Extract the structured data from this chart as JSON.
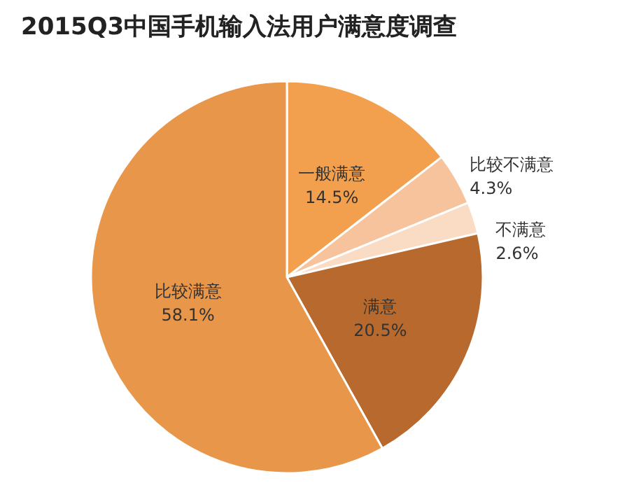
{
  "chart_data": {
    "type": "pie",
    "title": "2015Q3中国手机输入法用户满意度调查",
    "categories": [
      "一般满意",
      "比较不满意",
      "不满意",
      "满意",
      "比较满意"
    ],
    "values": [
      14.5,
      4.3,
      2.6,
      20.5,
      58.1
    ],
    "value_labels": [
      "14.5%",
      "4.3%",
      "2.6%",
      "20.5%",
      "58.1%"
    ],
    "colors": [
      "#f3a04e",
      "#f7c39c",
      "#fadbc4",
      "#b86a2e",
      "#e8964a"
    ],
    "legend": false
  }
}
